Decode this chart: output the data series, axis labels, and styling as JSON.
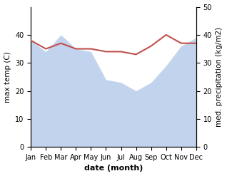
{
  "months": [
    "Jan",
    "Feb",
    "Mar",
    "Apr",
    "May",
    "Jun",
    "Jul",
    "Aug",
    "Sep",
    "Oct",
    "Nov",
    "Dec"
  ],
  "month_x": [
    0,
    1,
    2,
    3,
    4,
    5,
    6,
    7,
    8,
    9,
    10,
    11
  ],
  "temp_max": [
    38,
    35,
    37,
    35,
    35,
    34,
    34,
    33,
    36,
    40,
    37,
    37
  ],
  "precipitation": [
    190,
    170,
    200,
    175,
    170,
    120,
    115,
    100,
    115,
    145,
    180,
    195
  ],
  "temp_color": "#c0504d",
  "precip_fill_color": "#aec6e8",
  "precip_fill_alpha": 0.75,
  "temp_ylim": [
    0,
    50
  ],
  "temp_yticks": [
    0,
    10,
    20,
    30,
    40
  ],
  "precip_ylim": [
    0,
    250
  ],
  "precip_yticks": [
    0,
    50,
    100,
    150,
    200,
    250
  ],
  "precip_yticklabels": [
    "0",
    "10",
    "20",
    "30",
    "40",
    "50"
  ],
  "ylabel_left": "max temp (C)",
  "ylabel_right": "med. precipitation (kg/m2)",
  "xlabel": "date (month)",
  "bg_color": "#ffffff",
  "tick_fontsize": 7,
  "xlabel_fontsize": 8,
  "ylabel_fontsize": 7.5
}
